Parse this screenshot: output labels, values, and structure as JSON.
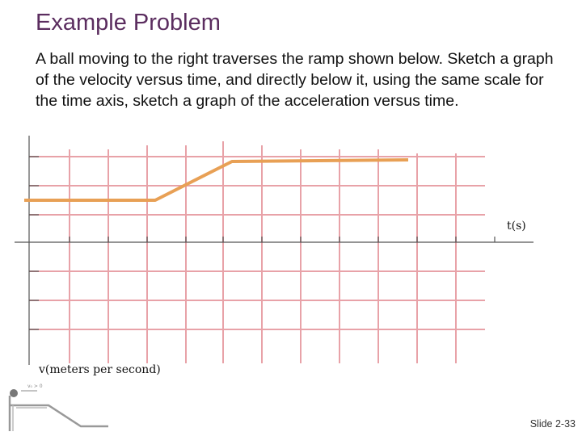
{
  "slide": {
    "title": "Example Problem",
    "body": "A ball moving to the right traverses the ramp shown below. Sketch a graph of the velocity versus time, and directly below it, using the same scale for the time axis, sketch a graph of the acceleration versus time.",
    "slide_number": "Slide 2-33"
  },
  "graph": {
    "time_axis_label": "t(s)",
    "velocity_axis_label": "v(meters per second)",
    "grid_color": "#e8a2a8",
    "curve_color": "#e8a055"
  },
  "ramp_inset": {
    "velocity_label": "v₀ > 0"
  }
}
